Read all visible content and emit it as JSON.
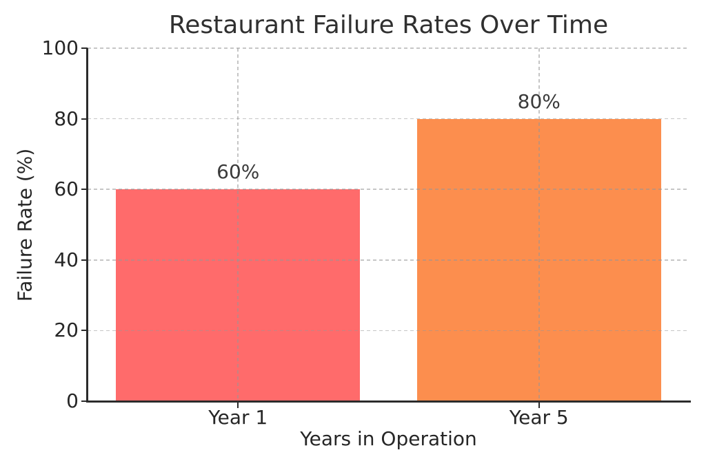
{
  "chart_data": {
    "type": "bar",
    "title": "Restaurant Failure Rates Over Time",
    "xlabel": "Years in Operation",
    "ylabel": "Failure Rate (%)",
    "categories": [
      "Year 1",
      "Year 5"
    ],
    "values": [
      60,
      80
    ],
    "value_labels": [
      "60%",
      "80%"
    ],
    "bar_colors": [
      "#FF6B6B",
      "#FC8E4E"
    ],
    "ylim": [
      0,
      100
    ],
    "yticks": [
      0,
      20,
      40,
      60,
      80,
      100
    ],
    "ytick_labels": [
      "0",
      "20",
      "40",
      "60",
      "80",
      "100"
    ],
    "grid": "dashed horizontal lines at yticks and dashed vertical lines at category centers, drawn above bars",
    "legend_position": "none",
    "colors": {
      "bar_year_1": "#FF6B6B",
      "bar_year_5": "#FC8E4E",
      "spine": "#2b2b2b",
      "text": "#262626",
      "grid": "#c6c6c6",
      "background": "#ffffff"
    }
  }
}
